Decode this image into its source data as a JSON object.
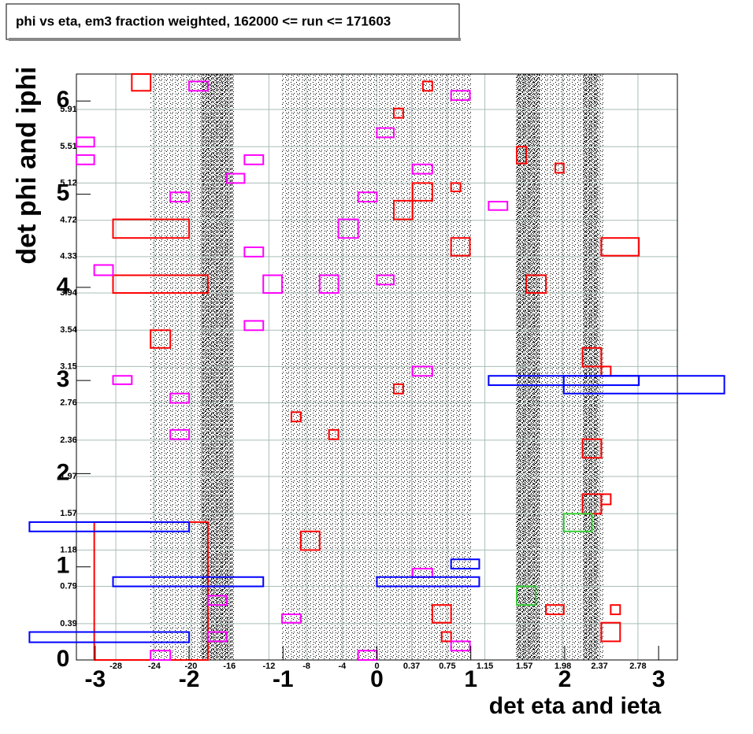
{
  "chart_data": {
    "type": "box-map",
    "title": "phi vs eta, em3 fraction weighted, 162000 <= run <= 171603",
    "xlabel": "det eta and ieta",
    "ylabel": "det phi and iphi",
    "xlim": [
      -3.2,
      3.2
    ],
    "ylim": [
      0,
      6.29
    ],
    "xticks": [
      -3,
      -2,
      -1,
      0,
      1,
      2,
      3
    ],
    "yticks": [
      0,
      1,
      2,
      3,
      4,
      5,
      6
    ],
    "x2ticks": [
      {
        "value": -2.78,
        "label": "-28"
      },
      {
        "value": -2.37,
        "label": "-24"
      },
      {
        "value": -1.98,
        "label": "-20"
      },
      {
        "value": -1.57,
        "label": "-16"
      },
      {
        "value": -1.15,
        "label": "-12"
      },
      {
        "value": -0.75,
        "label": "-8"
      },
      {
        "value": -0.37,
        "label": "-4"
      },
      0,
      0.37,
      0.75,
      1.15,
      1.57,
      1.98,
      2.37,
      2.78
    ],
    "y2ticks": [
      0.39,
      0.79,
      1.18,
      1.57,
      1.97,
      2.36,
      2.76,
      3.15,
      3.54,
      3.94,
      4.33,
      4.72,
      5.12,
      5.51,
      5.91
    ],
    "grid": true,
    "boxes": [
      {
        "color": "#ff0000",
        "x": [
          -2.61,
          -2.41
        ],
        "y": [
          6.11,
          6.29
        ]
      },
      {
        "color": "#ff0000",
        "x": [
          0.49,
          0.59
        ],
        "y": [
          6.11,
          6.21
        ]
      },
      {
        "color": "#ff0000",
        "x": [
          0.18,
          0.28
        ],
        "y": [
          5.82,
          5.92
        ]
      },
      {
        "color": "#ff0000",
        "x": [
          1.49,
          1.59
        ],
        "y": [
          5.33,
          5.51
        ]
      },
      {
        "color": "#ff0000",
        "x": [
          1.9,
          1.99
        ],
        "y": [
          5.23,
          5.33
        ]
      },
      {
        "color": "#ff0000",
        "x": [
          0.79,
          0.89
        ],
        "y": [
          5.03,
          5.12
        ]
      },
      {
        "color": "#ff0000",
        "x": [
          0.38,
          0.59
        ],
        "y": [
          4.93,
          5.12
        ]
      },
      {
        "color": "#ff0000",
        "x": [
          0.18,
          0.38
        ],
        "y": [
          4.73,
          4.93
        ]
      },
      {
        "color": "#ff0000",
        "x": [
          -2.81,
          -2.0
        ],
        "y": [
          4.53,
          4.73
        ]
      },
      {
        "color": "#ff0000",
        "x": [
          0.79,
          0.99
        ],
        "y": [
          4.34,
          4.53
        ]
      },
      {
        "color": "#ff0000",
        "x": [
          2.39,
          2.79
        ],
        "y": [
          4.34,
          4.53
        ]
      },
      {
        "color": "#ff0000",
        "x": [
          -2.81,
          -1.8
        ],
        "y": [
          3.94,
          4.13
        ]
      },
      {
        "color": "#ff0000",
        "x": [
          1.59,
          1.8
        ],
        "y": [
          3.94,
          4.13
        ]
      },
      {
        "color": "#ff0000",
        "x": [
          -2.41,
          -2.2
        ],
        "y": [
          3.35,
          3.54
        ]
      },
      {
        "color": "#ff0000",
        "x": [
          2.19,
          2.39
        ],
        "y": [
          3.15,
          3.35
        ]
      },
      {
        "color": "#ff0000",
        "x": [
          2.39,
          2.49
        ],
        "y": [
          3.05,
          3.15
        ]
      },
      {
        "color": "#ff0000",
        "x": [
          0.18,
          0.28
        ],
        "y": [
          2.86,
          2.96
        ]
      },
      {
        "color": "#ff0000",
        "x": [
          -0.91,
          -0.81
        ],
        "y": [
          2.56,
          2.66
        ]
      },
      {
        "color": "#ff0000",
        "x": [
          -0.51,
          -0.41
        ],
        "y": [
          2.37,
          2.47
        ]
      },
      {
        "color": "#ff0000",
        "x": [
          2.19,
          2.39
        ],
        "y": [
          2.17,
          2.37
        ]
      },
      {
        "color": "#ff0000",
        "x": [
          2.19,
          2.39
        ],
        "y": [
          1.57,
          1.78
        ]
      },
      {
        "color": "#ff0000",
        "x": [
          2.39,
          2.49
        ],
        "y": [
          1.67,
          1.78
        ]
      },
      {
        "color": "#ff0000",
        "x": [
          -0.81,
          -0.61
        ],
        "y": [
          1.18,
          1.38
        ]
      },
      {
        "color": "#ff0000",
        "x": [
          -3.01,
          -1.8
        ],
        "y": [
          0,
          1.48
        ]
      },
      {
        "color": "#ff0000",
        "x": [
          0.59,
          0.79
        ],
        "y": [
          0.4,
          0.59
        ]
      },
      {
        "color": "#ff0000",
        "x": [
          1.8,
          1.99
        ],
        "y": [
          0.49,
          0.59
        ]
      },
      {
        "color": "#ff0000",
        "x": [
          2.49,
          2.59
        ],
        "y": [
          0.49,
          0.59
        ]
      },
      {
        "color": "#ff0000",
        "x": [
          2.39,
          2.59
        ],
        "y": [
          0.2,
          0.4
        ]
      },
      {
        "color": "#ff0000",
        "x": [
          0.69,
          0.79
        ],
        "y": [
          0.2,
          0.3
        ]
      },
      {
        "color": "#ff00ff",
        "x": [
          -2.0,
          -1.8
        ],
        "y": [
          6.11,
          6.21
        ]
      },
      {
        "color": "#ff00ff",
        "x": [
          0.79,
          0.99
        ],
        "y": [
          6.01,
          6.11
        ]
      },
      {
        "color": "#ff00ff",
        "x": [
          0,
          0.18
        ],
        "y": [
          5.61,
          5.71
        ]
      },
      {
        "color": "#ff00ff",
        "x": [
          -3.2,
          -3.01
        ],
        "y": [
          5.51,
          5.61
        ]
      },
      {
        "color": "#ff00ff",
        "x": [
          -3.2,
          -3.01
        ],
        "y": [
          5.32,
          5.42
        ]
      },
      {
        "color": "#ff00ff",
        "x": [
          -1.41,
          -1.21
        ],
        "y": [
          5.32,
          5.42
        ]
      },
      {
        "color": "#ff00ff",
        "x": [
          0.38,
          0.59
        ],
        "y": [
          5.22,
          5.32
        ]
      },
      {
        "color": "#ff00ff",
        "x": [
          -1.6,
          -1.41
        ],
        "y": [
          5.12,
          5.22
        ]
      },
      {
        "color": "#ff00ff",
        "x": [
          -2.2,
          -2.0
        ],
        "y": [
          4.92,
          5.02
        ]
      },
      {
        "color": "#ff00ff",
        "x": [
          -0.2,
          0
        ],
        "y": [
          4.92,
          5.02
        ]
      },
      {
        "color": "#ff00ff",
        "x": [
          1.19,
          1.39
        ],
        "y": [
          4.83,
          4.92
        ]
      },
      {
        "color": "#ff00ff",
        "x": [
          -0.41,
          -0.2
        ],
        "y": [
          4.53,
          4.73
        ]
      },
      {
        "color": "#ff00ff",
        "x": [
          -1.41,
          -1.21
        ],
        "y": [
          4.33,
          4.43
        ]
      },
      {
        "color": "#ff00ff",
        "x": [
          -3.01,
          -2.81
        ],
        "y": [
          4.13,
          4.24
        ]
      },
      {
        "color": "#ff00ff",
        "x": [
          -1.21,
          -1.01
        ],
        "y": [
          3.94,
          4.13
        ]
      },
      {
        "color": "#ff00ff",
        "x": [
          -0.61,
          -0.41
        ],
        "y": [
          3.94,
          4.13
        ]
      },
      {
        "color": "#ff00ff",
        "x": [
          0,
          0.18
        ],
        "y": [
          4.03,
          4.13
        ]
      },
      {
        "color": "#ff00ff",
        "x": [
          -1.41,
          -1.21
        ],
        "y": [
          3.54,
          3.64
        ]
      },
      {
        "color": "#ff00ff",
        "x": [
          -2.81,
          -2.61
        ],
        "y": [
          2.96,
          3.05
        ]
      },
      {
        "color": "#ff00ff",
        "x": [
          0.38,
          0.59
        ],
        "y": [
          3.05,
          3.15
        ]
      },
      {
        "color": "#ff00ff",
        "x": [
          -2.2,
          -2.0
        ],
        "y": [
          2.76,
          2.86
        ]
      },
      {
        "color": "#ff00ff",
        "x": [
          -2.2,
          -2.0
        ],
        "y": [
          2.37,
          2.47
        ]
      },
      {
        "color": "#ff00ff",
        "x": [
          0.38,
          0.59
        ],
        "y": [
          0.89,
          0.98
        ]
      },
      {
        "color": "#ff00ff",
        "x": [
          -1.8,
          -1.6
        ],
        "y": [
          0.59,
          0.69
        ]
      },
      {
        "color": "#ff00ff",
        "x": [
          -1.01,
          -0.81
        ],
        "y": [
          0.4,
          0.49
        ]
      },
      {
        "color": "#ff00ff",
        "x": [
          -1.8,
          -1.6
        ],
        "y": [
          0.2,
          0.3
        ]
      },
      {
        "color": "#ff00ff",
        "x": [
          -2.41,
          -2.2
        ],
        "y": [
          0,
          0.1
        ]
      },
      {
        "color": "#ff00ff",
        "x": [
          -0.2,
          0
        ],
        "y": [
          0,
          0.1
        ]
      },
      {
        "color": "#ff00ff",
        "x": [
          0.79,
          0.99
        ],
        "y": [
          0.1,
          0.2
        ]
      },
      {
        "color": "#0000ff",
        "x": [
          1.19,
          2.79
        ],
        "y": [
          2.95,
          3.05
        ]
      },
      {
        "color": "#0000ff",
        "x": [
          1.99,
          3.7
        ],
        "y": [
          2.86,
          3.05
        ]
      },
      {
        "color": "#0000ff",
        "x": [
          -3.7,
          -2.0
        ],
        "y": [
          1.38,
          1.48
        ]
      },
      {
        "color": "#0000ff",
        "x": [
          0.79,
          1.09
        ],
        "y": [
          0.98,
          1.08
        ]
      },
      {
        "color": "#0000ff",
        "x": [
          -2.81,
          -1.21
        ],
        "y": [
          0.79,
          0.89
        ]
      },
      {
        "color": "#0000ff",
        "x": [
          0,
          1.09
        ],
        "y": [
          0.79,
          0.89
        ]
      },
      {
        "color": "#0000ff",
        "x": [
          -3.7,
          -2.0
        ],
        "y": [
          0.19,
          0.3
        ]
      },
      {
        "color": "#33cc33",
        "x": [
          1.99,
          2.29
        ],
        "y": [
          1.38,
          1.57
        ]
      },
      {
        "color": "#33cc33",
        "x": [
          1.49,
          1.69
        ],
        "y": [
          0.59,
          0.79
        ]
      }
    ]
  }
}
